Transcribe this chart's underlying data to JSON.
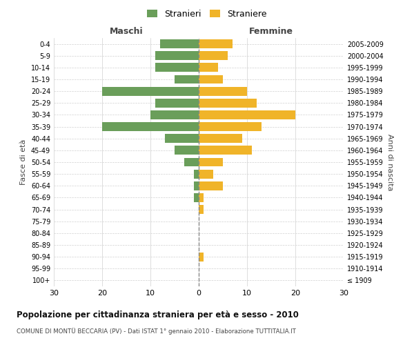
{
  "age_groups": [
    "100+",
    "95-99",
    "90-94",
    "85-89",
    "80-84",
    "75-79",
    "70-74",
    "65-69",
    "60-64",
    "55-59",
    "50-54",
    "45-49",
    "40-44",
    "35-39",
    "30-34",
    "25-29",
    "20-24",
    "15-19",
    "10-14",
    "5-9",
    "0-4"
  ],
  "birth_years": [
    "≤ 1909",
    "1910-1914",
    "1915-1919",
    "1920-1924",
    "1925-1929",
    "1930-1934",
    "1935-1939",
    "1940-1944",
    "1945-1949",
    "1950-1954",
    "1955-1959",
    "1960-1964",
    "1965-1969",
    "1970-1974",
    "1975-1979",
    "1980-1984",
    "1985-1989",
    "1990-1994",
    "1995-1999",
    "2000-2004",
    "2005-2009"
  ],
  "maschi": [
    0,
    0,
    0,
    0,
    0,
    0,
    0,
    1,
    1,
    1,
    3,
    5,
    7,
    20,
    10,
    9,
    20,
    5,
    9,
    9,
    8
  ],
  "femmine": [
    0,
    0,
    1,
    0,
    0,
    0,
    1,
    1,
    5,
    3,
    5,
    11,
    9,
    13,
    20,
    12,
    10,
    5,
    4,
    6,
    7
  ],
  "color_maschi": "#6a9e5a",
  "color_femmine": "#f0b429",
  "title": "Popolazione per cittadinanza straniera per età e sesso - 2010",
  "subtitle": "COMUNE DI MONTÜ BECCARIA (PV) - Dati ISTAT 1° gennaio 2010 - Elaborazione TUTTITALIA.IT",
  "xlabel_left": "Maschi",
  "xlabel_right": "Femmine",
  "ylabel_left": "Fasce di età",
  "ylabel_right": "Anni di nascita",
  "legend_maschi": "Stranieri",
  "legend_femmine": "Straniere",
  "xlim": 30,
  "background_color": "#ffffff",
  "grid_color": "#d0d0d0"
}
